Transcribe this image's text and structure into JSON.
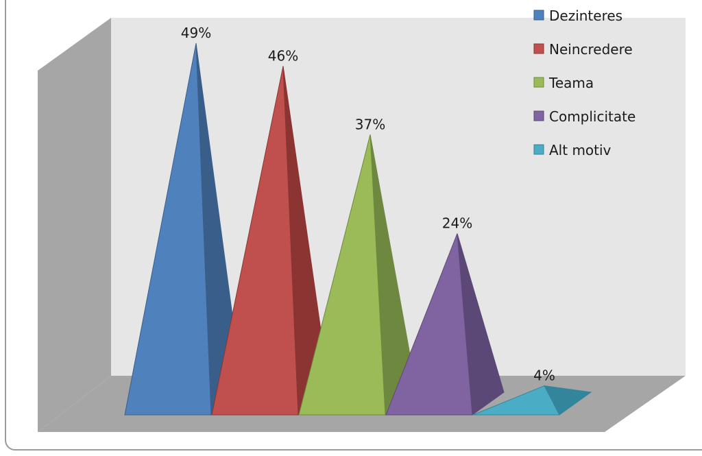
{
  "chart_data": {
    "type": "bar",
    "variant": "3d-pyramid",
    "categories": [
      "Dezinteres",
      "Neincredere",
      "Teama",
      "Complicitate",
      "Alt motiv"
    ],
    "values": [
      49,
      46,
      37,
      24,
      4
    ],
    "data_labels": [
      "49%",
      "46%",
      "37%",
      "24%",
      "4%"
    ],
    "legend": {
      "position": "top-right",
      "entries": [
        "Dezinteres",
        "Neincredere",
        "Teama",
        "Complicitate",
        "Alt motiv"
      ]
    },
    "colors": [
      "#4f81bd",
      "#c0504d",
      "#9bbb59",
      "#8064a2",
      "#4bacc6"
    ],
    "shade_colors": [
      "#3a5e8a",
      "#8b3432",
      "#6f8840",
      "#5b4877",
      "#33859b"
    ],
    "ylim": [
      0,
      50
    ],
    "grid": false,
    "title": "",
    "xlabel": "",
    "ylabel": ""
  }
}
